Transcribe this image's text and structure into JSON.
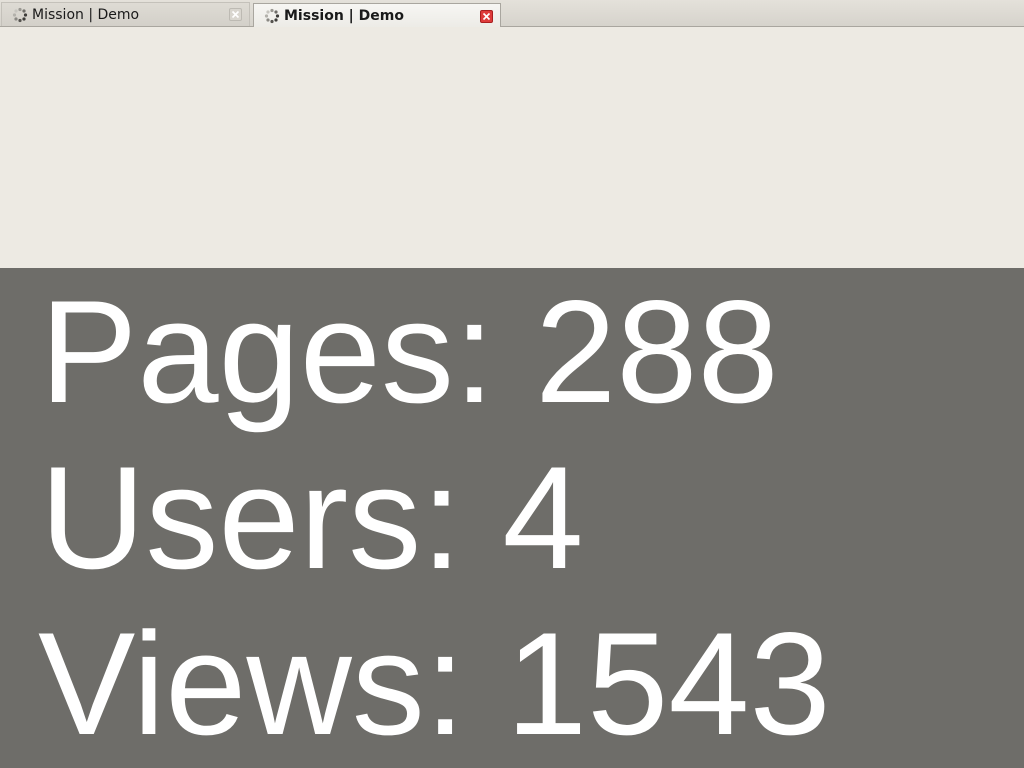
{
  "tabs": [
    {
      "title": "Mission | Demo",
      "active": false,
      "favicon": "loading-spinner-icon",
      "close_icon": "close-icon"
    },
    {
      "title": "Mission | Demo",
      "active": true,
      "favicon": "loading-spinner-icon",
      "close_icon": "close-icon"
    }
  ],
  "stats": {
    "pages": "Pages: 288",
    "users": "Users: 4",
    "views": "Views: 1543"
  },
  "colors": {
    "page_background": "#edeae3",
    "stats_background": "#6e6d69",
    "stats_text": "#ffffff",
    "active_close": "#de3b3b"
  }
}
